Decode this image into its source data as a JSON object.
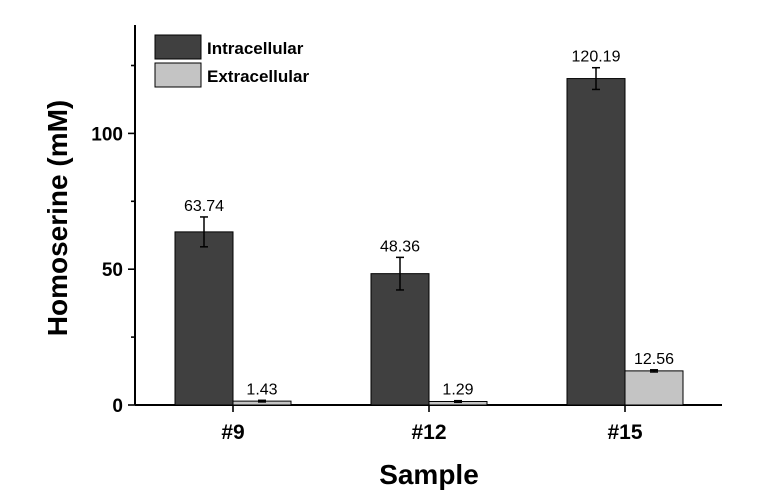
{
  "chart_data": {
    "type": "bar",
    "title": "",
    "xlabel": "Sample",
    "ylabel": "Homoserine (mM)",
    "categories": [
      "#9",
      "#12",
      "#15"
    ],
    "ylim": [
      0,
      140
    ],
    "yticks": [
      0,
      50,
      100
    ],
    "series": [
      {
        "name": "Intracellular",
        "color": "#404040",
        "values": [
          63.74,
          48.36,
          120.19
        ],
        "labels": [
          "63.74",
          "48.36",
          "120.19"
        ],
        "errors": [
          5.5,
          6.0,
          4.0
        ]
      },
      {
        "name": "Extracellular",
        "color": "#c4c4c4",
        "values": [
          1.43,
          1.29,
          12.56
        ],
        "labels": [
          "1.43",
          "1.29",
          "12.56"
        ],
        "errors": [
          0.3,
          0.3,
          0.4
        ]
      }
    ],
    "legend_position": "top-left"
  }
}
